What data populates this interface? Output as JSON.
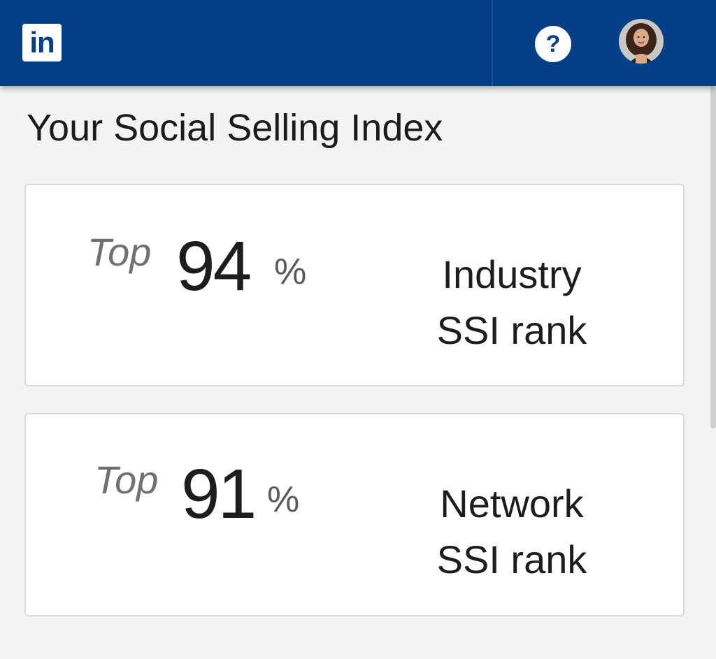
{
  "header": {
    "logo_text": "in",
    "help_icon": "question-circle-icon",
    "help_text": "?",
    "avatar_icon": "profile-avatar"
  },
  "page": {
    "title": "Your Social Selling Index"
  },
  "cards": [
    {
      "prefix": "Top",
      "value": "94",
      "unit": "%",
      "label_line1": "Industry",
      "label_line2": "SSI rank"
    },
    {
      "prefix": "Top",
      "value": "91",
      "unit": "%",
      "label_line1": "Network",
      "label_line2": "SSI rank"
    }
  ],
  "colors": {
    "header_bg": "#053f87",
    "page_bg": "#f3f3f3",
    "card_bg": "#ffffff",
    "card_border": "#dadada"
  }
}
